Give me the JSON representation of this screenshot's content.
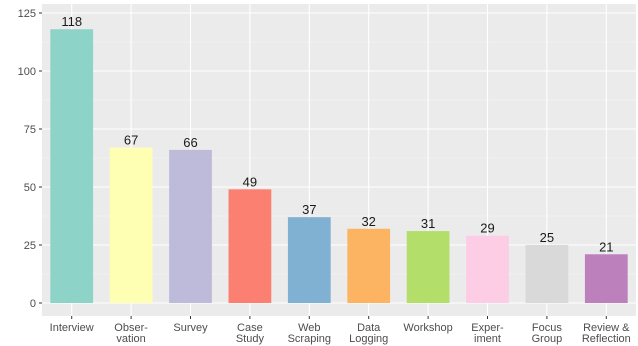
{
  "chart_data": {
    "type": "bar",
    "categories": [
      [
        "Interview"
      ],
      [
        "Obser-",
        "vation"
      ],
      [
        "Survey"
      ],
      [
        "Case",
        "Study"
      ],
      [
        "Web",
        "Scraping"
      ],
      [
        "Data",
        "Logging"
      ],
      [
        "Workshop"
      ],
      [
        "Exper-",
        "iment"
      ],
      [
        "Focus",
        "Group"
      ],
      [
        "Review &",
        "Reflection"
      ]
    ],
    "values": [
      118,
      67,
      66,
      49,
      37,
      32,
      31,
      29,
      25,
      21
    ],
    "colors": [
      "#8DD3C7",
      "#FFFFB3",
      "#BEBADA",
      "#FB8072",
      "#80B1D3",
      "#FDB462",
      "#B3DE69",
      "#FCCDE5",
      "#D9D9D9",
      "#BC80BD"
    ],
    "ylim": [
      0,
      125
    ],
    "yticks": [
      0,
      25,
      50,
      75,
      100,
      125
    ],
    "grid": true,
    "title": "",
    "xlabel": "",
    "ylabel": "",
    "style": {
      "panel_background": "#EBEBEB",
      "grid_major": "#FFFFFF",
      "grid_minor": "#F5F5F5"
    }
  }
}
